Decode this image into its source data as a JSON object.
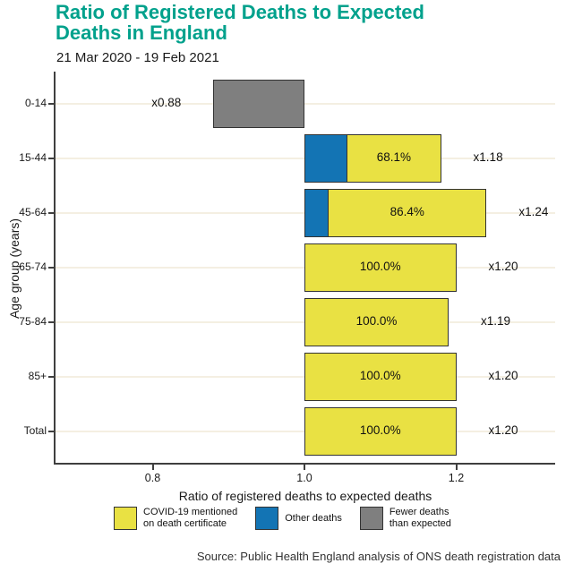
{
  "chart_data": {
    "type": "bar",
    "orientation": "horizontal",
    "title": "Ratio of Registered Deaths to Expected Deaths in England",
    "subtitle": "21 Mar 2020 - 19 Feb 2021",
    "xlabel": "Ratio of registered deaths to expected deaths",
    "ylabel": "Age group (years)",
    "xlim": [
      0.67,
      1.33
    ],
    "baseline": 1.0,
    "x_ticks": [
      "0.8",
      "1.0",
      "1.2"
    ],
    "x_tick_values": [
      0.8,
      1.0,
      1.2
    ],
    "grid": "horizontal gridlines only",
    "legend_position": "bottom",
    "rows": [
      {
        "age_group": "0-14",
        "ratio": 0.88,
        "ratio_label": "x0.88",
        "pct_label": "",
        "covid_pct": 0,
        "other_pct": 0,
        "fewer": true
      },
      {
        "age_group": "15-44",
        "ratio": 1.18,
        "ratio_label": "x1.18",
        "pct_label": "68.1%",
        "covid_pct": 68.1,
        "other_pct": 31.9,
        "fewer": false
      },
      {
        "age_group": "45-64",
        "ratio": 1.24,
        "ratio_label": "x1.24",
        "pct_label": "86.4%",
        "covid_pct": 86.4,
        "other_pct": 13.6,
        "fewer": false
      },
      {
        "age_group": "65-74",
        "ratio": 1.2,
        "ratio_label": "x1.20",
        "pct_label": "100.0%",
        "covid_pct": 100.0,
        "other_pct": 0,
        "fewer": false
      },
      {
        "age_group": "75-84",
        "ratio": 1.19,
        "ratio_label": "x1.19",
        "pct_label": "100.0%",
        "covid_pct": 100.0,
        "other_pct": 0,
        "fewer": false
      },
      {
        "age_group": "85+",
        "ratio": 1.2,
        "ratio_label": "x1.20",
        "pct_label": "100.0%",
        "covid_pct": 100.0,
        "other_pct": 0,
        "fewer": false
      },
      {
        "age_group": "Total",
        "ratio": 1.2,
        "ratio_label": "x1.20",
        "pct_label": "100.0%",
        "covid_pct": 100.0,
        "other_pct": 0,
        "fewer": false
      }
    ],
    "legend": [
      {
        "key": "covid",
        "lines": [
          "COVID-19 mentioned",
          "on death certificate"
        ],
        "color": "#E9E143"
      },
      {
        "key": "other",
        "lines": [
          "Other deaths"
        ],
        "color": "#1374B4"
      },
      {
        "key": "fewer",
        "lines": [
          "Fewer deaths",
          "than expected"
        ],
        "color": "#7F7F7F"
      }
    ]
  },
  "colors": {
    "title": "#00A18C",
    "covid_yellow": "#E9E143",
    "other_blue": "#1374B4",
    "fewer_gray": "#7F7F7F",
    "bar_border": "#333333",
    "gridline": "#F4EFE2",
    "axis_line": "#3F3F3F",
    "text": "#1A1A1A"
  },
  "source": "Source: Public Health England analysis of ONS death registration data"
}
